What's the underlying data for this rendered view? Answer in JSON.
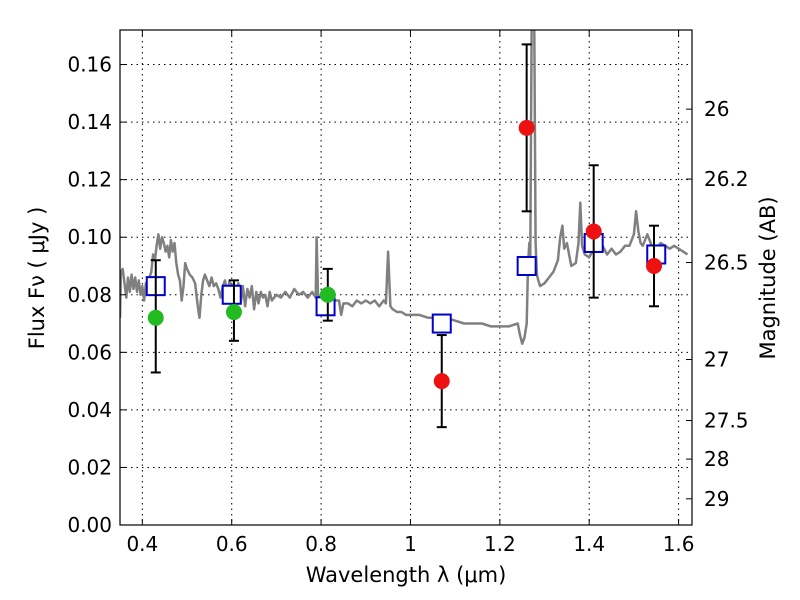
{
  "chart_data": {
    "type": "scatter",
    "xlabel": "Wavelength  λ (μm)",
    "ylabel": "Flux  Fν  ( μJy )",
    "y2label": "Magnitude (AB)",
    "xlim": [
      0.35,
      1.63
    ],
    "ylim": [
      0.0,
      0.172
    ],
    "x_ticks": [
      0.4,
      0.6,
      0.8,
      1.0,
      1.2,
      1.4,
      1.6
    ],
    "x_tick_labels": [
      "0.4",
      "0.6",
      "0.8",
      "1",
      "1.2",
      "1.4",
      "1.6"
    ],
    "y_ticks": [
      0.0,
      0.02,
      0.04,
      0.06,
      0.08,
      0.1,
      0.12,
      0.14,
      0.16
    ],
    "y_tick_labels": [
      "0.00",
      "0.02",
      "0.04",
      "0.06",
      "0.08",
      "0.10",
      "0.12",
      "0.14",
      "0.16"
    ],
    "y2_ticks": [
      {
        "label": "26",
        "flux": 0.1445
      },
      {
        "label": "26.2",
        "flux": 0.1202
      },
      {
        "label": "26.5",
        "flux": 0.0912
      },
      {
        "label": "27",
        "flux": 0.0575
      },
      {
        "label": "27.5",
        "flux": 0.0363
      },
      {
        "label": "28",
        "flux": 0.0229
      },
      {
        "label": "29",
        "flux": 0.0091
      }
    ],
    "grid": true,
    "colors": {
      "model": "#808080",
      "green": "#22bb22",
      "red": "#ee1111",
      "squares": "#0000cc",
      "errorbars": "#000000"
    },
    "series": [
      {
        "kind": "line",
        "points": [
          [
            0.35,
            0.072
          ],
          [
            0.352,
            0.088
          ],
          [
            0.356,
            0.089
          ],
          [
            0.36,
            0.084
          ],
          [
            0.364,
            0.079
          ],
          [
            0.368,
            0.086
          ],
          [
            0.372,
            0.081
          ],
          [
            0.376,
            0.087
          ],
          [
            0.38,
            0.082
          ],
          [
            0.384,
            0.086
          ],
          [
            0.388,
            0.081
          ],
          [
            0.392,
            0.085
          ],
          [
            0.396,
            0.08
          ],
          [
            0.4,
            0.083
          ],
          [
            0.404,
            0.078
          ],
          [
            0.408,
            0.084
          ],
          [
            0.412,
            0.08
          ],
          [
            0.416,
            0.086
          ],
          [
            0.42,
            0.088
          ],
          [
            0.424,
            0.094
          ],
          [
            0.428,
            0.092
          ],
          [
            0.432,
            0.097
          ],
          [
            0.436,
            0.101
          ],
          [
            0.44,
            0.096
          ],
          [
            0.444,
            0.1
          ],
          [
            0.448,
            0.098
          ],
          [
            0.452,
            0.095
          ],
          [
            0.456,
            0.097
          ],
          [
            0.46,
            0.093
          ],
          [
            0.464,
            0.099
          ],
          [
            0.468,
            0.095
          ],
          [
            0.472,
            0.098
          ],
          [
            0.476,
            0.091
          ],
          [
            0.48,
            0.087
          ],
          [
            0.484,
            0.085
          ],
          [
            0.488,
            0.078
          ],
          [
            0.492,
            0.083
          ],
          [
            0.496,
            0.091
          ],
          [
            0.5,
            0.089
          ],
          [
            0.506,
            0.087
          ],
          [
            0.512,
            0.086
          ],
          [
            0.518,
            0.084
          ],
          [
            0.524,
            0.076
          ],
          [
            0.528,
            0.072
          ],
          [
            0.532,
            0.08
          ],
          [
            0.536,
            0.085
          ],
          [
            0.54,
            0.087
          ],
          [
            0.545,
            0.085
          ],
          [
            0.55,
            0.083
          ],
          [
            0.555,
            0.086
          ],
          [
            0.56,
            0.083
          ],
          [
            0.565,
            0.084
          ],
          [
            0.57,
            0.082
          ],
          [
            0.575,
            0.079
          ],
          [
            0.58,
            0.083
          ],
          [
            0.585,
            0.085
          ],
          [
            0.59,
            0.08
          ],
          [
            0.595,
            0.085
          ],
          [
            0.6,
            0.081
          ],
          [
            0.605,
            0.084
          ],
          [
            0.61,
            0.079
          ],
          [
            0.615,
            0.084
          ],
          [
            0.62,
            0.077
          ],
          [
            0.625,
            0.083
          ],
          [
            0.63,
            0.076
          ],
          [
            0.635,
            0.082
          ],
          [
            0.64,
            0.079
          ],
          [
            0.645,
            0.083
          ],
          [
            0.65,
            0.075
          ],
          [
            0.655,
            0.081
          ],
          [
            0.66,
            0.077
          ],
          [
            0.665,
            0.081
          ],
          [
            0.67,
            0.079
          ],
          [
            0.675,
            0.08
          ],
          [
            0.68,
            0.076
          ],
          [
            0.685,
            0.081
          ],
          [
            0.69,
            0.078
          ],
          [
            0.7,
            0.08
          ],
          [
            0.71,
            0.079
          ],
          [
            0.72,
            0.081
          ],
          [
            0.73,
            0.079
          ],
          [
            0.74,
            0.082
          ],
          [
            0.75,
            0.08
          ],
          [
            0.76,
            0.081
          ],
          [
            0.77,
            0.079
          ],
          [
            0.78,
            0.081
          ],
          [
            0.788,
            0.079
          ],
          [
            0.79,
            0.1
          ],
          [
            0.793,
            0.08
          ],
          [
            0.8,
            0.078
          ],
          [
            0.81,
            0.079
          ],
          [
            0.82,
            0.078
          ],
          [
            0.83,
            0.078
          ],
          [
            0.84,
            0.078
          ],
          [
            0.845,
            0.073
          ],
          [
            0.85,
            0.077
          ],
          [
            0.86,
            0.077
          ],
          [
            0.87,
            0.076
          ],
          [
            0.88,
            0.078
          ],
          [
            0.89,
            0.077
          ],
          [
            0.9,
            0.078
          ],
          [
            0.91,
            0.077
          ],
          [
            0.92,
            0.078
          ],
          [
            0.93,
            0.076
          ],
          [
            0.94,
            0.078
          ],
          [
            0.945,
            0.077
          ],
          [
            0.95,
            0.095
          ],
          [
            0.955,
            0.076
          ],
          [
            0.96,
            0.075
          ],
          [
            0.97,
            0.074
          ],
          [
            0.98,
            0.074
          ],
          [
            0.99,
            0.073
          ],
          [
            1.0,
            0.073
          ],
          [
            1.02,
            0.073
          ],
          [
            1.04,
            0.072
          ],
          [
            1.06,
            0.072
          ],
          [
            1.08,
            0.072
          ],
          [
            1.1,
            0.071
          ],
          [
            1.12,
            0.07
          ],
          [
            1.14,
            0.07
          ],
          [
            1.16,
            0.07
          ],
          [
            1.18,
            0.069
          ],
          [
            1.2,
            0.069
          ],
          [
            1.22,
            0.069
          ],
          [
            1.24,
            0.07
          ],
          [
            1.245,
            0.066
          ],
          [
            1.25,
            0.063
          ],
          [
            1.255,
            0.065
          ],
          [
            1.26,
            0.07
          ],
          [
            1.263,
            0.09
          ],
          [
            1.266,
            0.098
          ],
          [
            1.268,
            0.088
          ],
          [
            1.271,
            0.172
          ],
          [
            1.274,
            0.172
          ],
          [
            1.277,
            0.172
          ],
          [
            1.28,
            0.098
          ],
          [
            1.283,
            0.087
          ],
          [
            1.286,
            0.085
          ],
          [
            1.29,
            0.083
          ],
          [
            1.3,
            0.084
          ],
          [
            1.31,
            0.086
          ],
          [
            1.32,
            0.088
          ],
          [
            1.33,
            0.092
          ],
          [
            1.335,
            0.1
          ],
          [
            1.34,
            0.104
          ],
          [
            1.344,
            0.096
          ],
          [
            1.35,
            0.098
          ],
          [
            1.355,
            0.094
          ],
          [
            1.36,
            0.09
          ],
          [
            1.37,
            0.091
          ],
          [
            1.376,
            0.098
          ],
          [
            1.38,
            0.112
          ],
          [
            1.384,
            0.097
          ],
          [
            1.39,
            0.094
          ],
          [
            1.4,
            0.093
          ],
          [
            1.41,
            0.096
          ],
          [
            1.42,
            0.095
          ],
          [
            1.43,
            0.097
          ],
          [
            1.44,
            0.094
          ],
          [
            1.45,
            0.096
          ],
          [
            1.46,
            0.094
          ],
          [
            1.47,
            0.095
          ],
          [
            1.48,
            0.097
          ],
          [
            1.49,
            0.097
          ],
          [
            1.5,
            0.101
          ],
          [
            1.505,
            0.109
          ],
          [
            1.51,
            0.102
          ],
          [
            1.515,
            0.098
          ],
          [
            1.52,
            0.097
          ],
          [
            1.53,
            0.101
          ],
          [
            1.54,
            0.097
          ],
          [
            1.55,
            0.096
          ],
          [
            1.56,
            0.098
          ],
          [
            1.57,
            0.097
          ],
          [
            1.58,
            0.096
          ],
          [
            1.59,
            0.097
          ],
          [
            1.6,
            0.096
          ],
          [
            1.61,
            0.095
          ],
          [
            1.62,
            0.094
          ]
        ]
      },
      {
        "kind": "square",
        "points": [
          [
            0.43,
            0.083
          ],
          [
            0.6,
            0.08
          ],
          [
            0.81,
            0.076
          ],
          [
            1.07,
            0.07
          ],
          [
            1.26,
            0.09
          ],
          [
            1.41,
            0.098
          ],
          [
            1.55,
            0.094
          ]
        ]
      },
      {
        "kind": "errorbar",
        "points": [
          {
            "x": 0.43,
            "y": 0.072,
            "lo": 0.053,
            "hi": 0.092
          },
          {
            "x": 0.605,
            "y": 0.074,
            "lo": 0.064,
            "hi": 0.085
          },
          {
            "x": 0.815,
            "y": 0.08,
            "lo": 0.071,
            "hi": 0.089
          },
          {
            "x": 1.07,
            "y": 0.05,
            "lo": 0.034,
            "hi": 0.066
          },
          {
            "x": 1.26,
            "y": 0.138,
            "lo": 0.109,
            "hi": 0.167
          },
          {
            "x": 1.41,
            "y": 0.102,
            "lo": 0.079,
            "hi": 0.125
          },
          {
            "x": 1.545,
            "y": 0.09,
            "lo": 0.076,
            "hi": 0.104
          }
        ]
      },
      {
        "kind": "circle-green",
        "points": [
          [
            0.43,
            0.072
          ],
          [
            0.605,
            0.074
          ],
          [
            0.815,
            0.08
          ]
        ]
      },
      {
        "kind": "circle-red",
        "points": [
          [
            1.07,
            0.05
          ],
          [
            1.26,
            0.138
          ],
          [
            1.41,
            0.102
          ],
          [
            1.545,
            0.09
          ]
        ]
      }
    ]
  }
}
